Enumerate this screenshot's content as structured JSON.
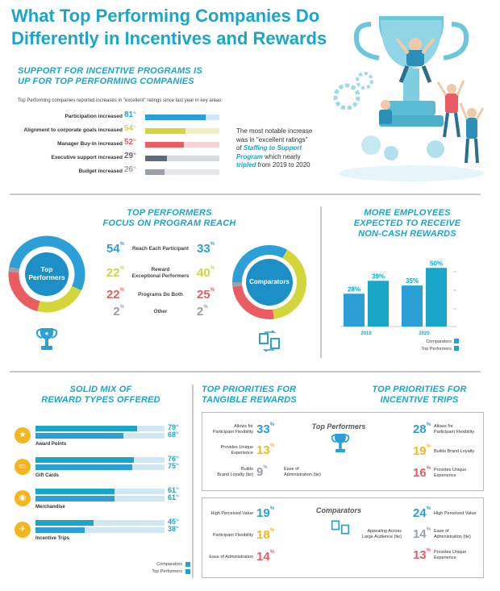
{
  "title_line1": "What Top Performing Companies Do",
  "title_line2": "Differently in Incentives and Rewards",
  "support": {
    "heading_line1": "SUPPORT FOR INCENTIVE PROGRAMS IS",
    "heading_line2": "UP FOR TOP PERFORMING COMPANIES",
    "intro": "Top Performing companies reported increases in \"excellent\" ratings since last year in key areas:",
    "note_line1": "The most notable increase",
    "note_line2": "was in \"excellent ratings\"",
    "note_line3_a": "of ",
    "note_line3_b": "Staffing to Support",
    "note_line4_a": "Program",
    "note_line4_b": " which nearly",
    "note_line5_a": "tripled",
    "note_line5_b": " from 2019 to 2020"
  },
  "reach": {
    "heading_line1": "TOP PERFORMERS",
    "heading_line2": "FOCUS ON PROGRAM REACH",
    "left_label_line1": "Top",
    "left_label_line2": "Performers",
    "right_label": "Comparators"
  },
  "noncash": {
    "heading_line1": "MORE EMPLOYEES",
    "heading_line2": "EXPECTED TO RECEIVE",
    "heading_line3": "NON-CASH REWARDS"
  },
  "mix": {
    "heading_line1": "SOLID MIX OF",
    "heading_line2": "REWARD TYPES OFFERED",
    "legend_comparators": "Comparators",
    "legend_top": "Top Performers"
  },
  "tangible": {
    "heading_line1": "TOP PRIORITIES FOR",
    "heading_line2": "TANGIBLE REWARDS"
  },
  "trips": {
    "heading_line1": "TOP PRIORITIES FOR",
    "heading_line2": "INCENTIVE TRIPS"
  },
  "priorities": {
    "top_label": "Top Performers",
    "comp_label": "Comparators"
  },
  "colors": {
    "teal": "#1aa6c8",
    "blue": "#2b9fd6",
    "lightblue": "#a8d8ea",
    "yellow": "#d2d63a",
    "red": "#e85c62",
    "grey": "#9aa0a6",
    "orange": "#f5b521"
  },
  "chart_data": [
    {
      "type": "bar",
      "orientation": "horizontal",
      "title": "Support for incentive programs is up for top performing companies",
      "categories": [
        "Participation increased",
        "Alignment to corporate goals increased",
        "Manager Buy-In increased",
        "Executive support increased",
        "Budget increased"
      ],
      "values": [
        81,
        54,
        52,
        29,
        26
      ],
      "value_labels": [
        "81%",
        "54%",
        "52%",
        "29%",
        "26%"
      ],
      "unit": "%"
    },
    {
      "type": "pie",
      "title": "Top Performers focus on program reach",
      "categories": [
        "Reach Each Participant",
        "Reward Exceptional Performers",
        "Programs Do Both",
        "Other"
      ],
      "category_labels": [
        {
          "line1": "Reach Each Participant",
          "line2": ""
        },
        {
          "line1": "Reward",
          "line2": "Exceptional Performers"
        },
        {
          "line1": "Programs Do Both",
          "line2": ""
        },
        {
          "line1": "Other",
          "line2": ""
        }
      ],
      "series": [
        {
          "name": "Top Performers",
          "values": [
            54,
            22,
            22,
            2
          ],
          "labels": [
            "54%",
            "22%",
            "22%",
            "2%"
          ]
        },
        {
          "name": "Comparators",
          "values": [
            33,
            40,
            25,
            2
          ],
          "labels": [
            "33%",
            "40%",
            "25%",
            "2%"
          ]
        }
      ]
    },
    {
      "type": "bar",
      "title": "More employees expected to receive non-cash rewards",
      "categories": [
        "2019",
        "2020"
      ],
      "series": [
        {
          "name": "Comparators",
          "values": [
            28,
            35
          ],
          "labels": [
            "28%",
            "35%"
          ]
        },
        {
          "name": "Top Performers",
          "values": [
            39,
            50
          ],
          "labels": [
            "39%",
            "50%"
          ]
        }
      ],
      "ylim": [
        0,
        55
      ],
      "legend": [
        "Comparators",
        "Top Performers"
      ]
    },
    {
      "type": "bar",
      "orientation": "horizontal",
      "title": "Solid mix of reward types offered",
      "categories": [
        "Award Points",
        "Gift Cards",
        "Merchandise",
        "Incentive Trips"
      ],
      "series": [
        {
          "name": "Top Performers",
          "values": [
            79,
            76,
            61,
            45
          ],
          "labels": [
            "79%",
            "76%",
            "61%",
            "45%"
          ]
        },
        {
          "name": "Comparators",
          "values": [
            68,
            75,
            61,
            38
          ],
          "labels": [
            "68%",
            "75%",
            "61%",
            "38%"
          ]
        }
      ]
    },
    {
      "type": "table",
      "title": "Top priorities for tangible rewards",
      "top_performers": [
        {
          "line1": "Allows for",
          "line2": "Participant Flexibility",
          "value": 33,
          "label": "33%"
        },
        {
          "line1": "Provides Unique",
          "line2": "Experience",
          "value": 13,
          "label": "13%"
        },
        {
          "line1": "Builds",
          "line2": "Brand Loyalty (tie)",
          "value": 9,
          "label": "9%"
        },
        {
          "line1": "Ease of",
          "line2": "Administration (tie)",
          "value": 9,
          "label": "9%"
        }
      ],
      "comparators": [
        {
          "line1": "High Perceived Value",
          "value": 19,
          "label": "19%"
        },
        {
          "line1": "Participant Flexibility",
          "value": 18,
          "label": "18%"
        },
        {
          "line1": "Ease of Administration",
          "value": 14,
          "label": "14%"
        }
      ]
    },
    {
      "type": "table",
      "title": "Top priorities for incentive trips",
      "top_performers": [
        {
          "line1": "Allows for",
          "line2": "Participant Flexibility",
          "value": 28,
          "label": "28%"
        },
        {
          "line1": "Builds Brand Loyalty",
          "line2": "",
          "value": 19,
          "label": "19%"
        },
        {
          "line1": "Provides Unique",
          "line2": "Experience",
          "value": 16,
          "label": "16%"
        }
      ],
      "comparators": [
        {
          "line1": "High Perceived Value",
          "line2": "",
          "value": 24,
          "label": "24%"
        },
        {
          "line1": "Appealing Across",
          "line2": "Large Audience (tie)",
          "value": 14,
          "label": "14%"
        },
        {
          "line1": "Ease of",
          "line2": "Administration (tie)",
          "value": 14,
          "label": "14%"
        },
        {
          "line1": "Provides Unique",
          "line2": "Experience",
          "value": 13,
          "label": "13%"
        }
      ]
    }
  ]
}
